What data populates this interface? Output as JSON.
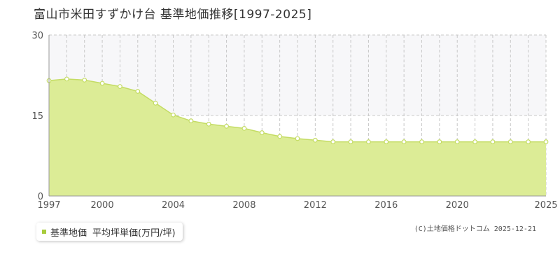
{
  "title": "富山市米田すずかけ台 基準地価推移[1997-2025]",
  "legend": {
    "series_label": "基準地価",
    "unit_label": "平均坪単価(万円/坪)"
  },
  "credit": "(C)土地価格ドットコム 2025-12-21",
  "colors": {
    "fill": "#dcec96",
    "line": "#c4dc64",
    "marker_stroke": "#c4dc64",
    "marker_fill": "#ffffff",
    "swatch": "#a8cc3c",
    "grid": "#c8c8c8",
    "band": "#f7f7f9",
    "axis": "#999999"
  },
  "chart_data": {
    "type": "area",
    "title": "富山市米田すずかけ台 基準地価推移[1997-2025]",
    "xlabel": "",
    "ylabel": "",
    "xlim": [
      1997,
      2025
    ],
    "ylim": [
      0,
      30
    ],
    "yticks": [
      0,
      15,
      30
    ],
    "xticks": [
      1997,
      2000,
      2004,
      2008,
      2012,
      2016,
      2020,
      2025
    ],
    "grid": true,
    "legend_position": "bottom-left",
    "series": [
      {
        "name": "基準地価",
        "x": [
          1997,
          1998,
          1999,
          2000,
          2001,
          2002,
          2003,
          2004,
          2005,
          2006,
          2007,
          2008,
          2009,
          2010,
          2011,
          2012,
          2013,
          2014,
          2015,
          2016,
          2017,
          2018,
          2019,
          2020,
          2021,
          2022,
          2023,
          2024,
          2025
        ],
        "values": [
          21.5,
          21.8,
          21.6,
          21.0,
          20.4,
          19.5,
          17.3,
          15.1,
          14.0,
          13.4,
          13.0,
          12.6,
          11.8,
          11.1,
          10.7,
          10.4,
          10.1,
          10.1,
          10.1,
          10.1,
          10.1,
          10.1,
          10.1,
          10.1,
          10.1,
          10.1,
          10.1,
          10.1,
          10.1
        ]
      }
    ]
  }
}
